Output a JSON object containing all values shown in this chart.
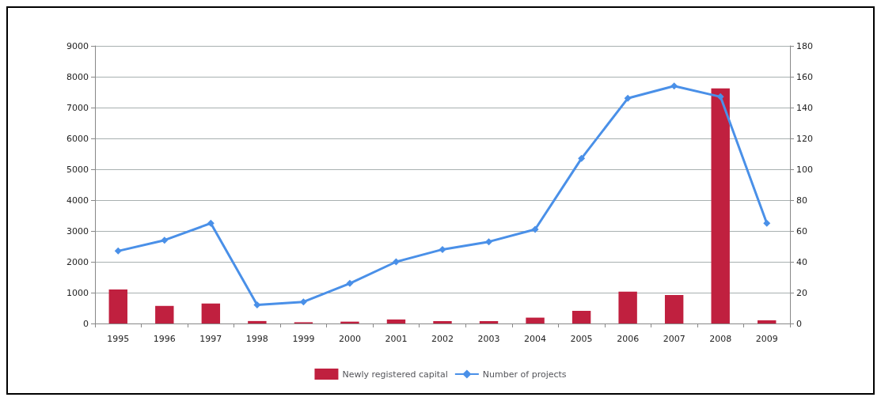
{
  "chart_data": {
    "type": "bar",
    "categories": [
      "1995",
      "1996",
      "1997",
      "1998",
      "1999",
      "2000",
      "2001",
      "2002",
      "2003",
      "2004",
      "2005",
      "2006",
      "2007",
      "2008",
      "2009"
    ],
    "series": [
      {
        "name": "Newly registered capital",
        "color": "#c0203f",
        "values": [
          1100,
          570,
          650,
          80,
          40,
          60,
          130,
          80,
          80,
          190,
          410,
          1030,
          920,
          7620,
          100
        ]
      },
      {
        "name": "Number of projects",
        "type": "line",
        "axis": "y2",
        "color": "#4a90e8",
        "values": [
          47,
          54,
          65,
          12,
          14,
          26,
          40,
          48,
          53,
          61,
          107,
          146,
          154,
          147,
          65
        ]
      }
    ],
    "ylim": [
      0,
      9000
    ],
    "yticks": [
      0,
      1000,
      2000,
      3000,
      4000,
      5000,
      6000,
      7000,
      8000,
      9000
    ],
    "y2lim": [
      0,
      180
    ],
    "y2ticks": [
      0,
      20,
      40,
      60,
      80,
      100,
      120,
      140,
      160,
      180
    ],
    "grid": "y",
    "legend": "bottom",
    "marker": "diamond"
  }
}
